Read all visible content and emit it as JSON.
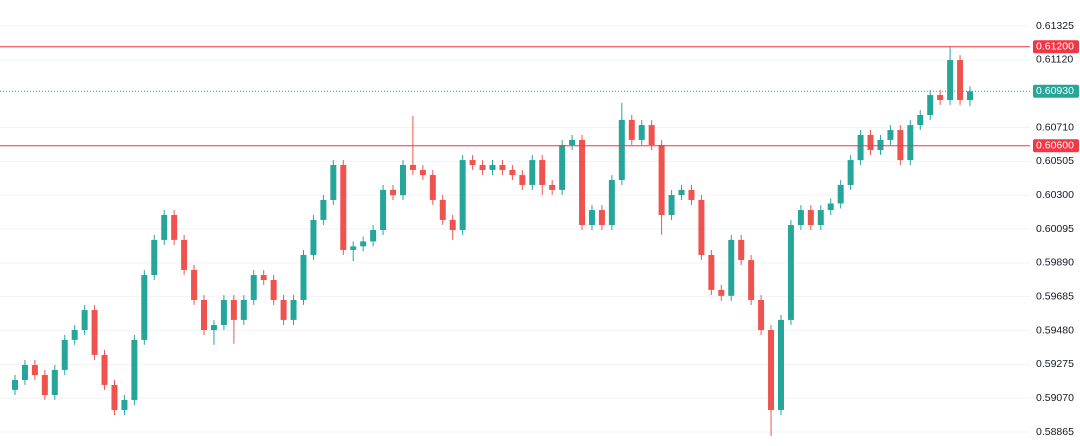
{
  "chart_data": {
    "type": "candlestick",
    "up_color": "#26a69a",
    "down_color": "#ef5350",
    "ylim": [
      0.5878,
      0.61483
    ],
    "yticks": [
      0.61325,
      {
        "value": 0.6112,
        "label": "0.61120"
      },
      {
        "value": 0.6071,
        "label": "0.60710"
      },
      0.60505,
      {
        "value": 0.603,
        "label": "0.60300"
      },
      0.60095,
      {
        "value": 0.5989,
        "label": "0.59890"
      },
      0.59685,
      {
        "value": 0.5948,
        "label": "0.59480"
      },
      0.59275,
      {
        "value": 0.5907,
        "label": "0.59070"
      },
      0.58865
    ],
    "grid": true,
    "hlines": [
      {
        "value": 0.612,
        "label": "0.61200",
        "color": "#f23645",
        "style": "solid"
      },
      {
        "value": 0.6093,
        "label": "0.60930",
        "color": "#26a69a",
        "style": "dotted"
      },
      {
        "value": 0.606,
        "label": "0.60600",
        "color": "#f23645",
        "style": "solid"
      }
    ],
    "open": [
      0.5912,
      0.5918,
      0.59271,
      0.5921,
      0.59089,
      0.59241,
      0.59423,
      0.59483,
      0.59604,
      0.59332,
      0.5915,
      0.58998,
      0.59059,
      0.59423,
      0.59816,
      0.60029,
      0.6018,
      0.60029,
      0.59847,
      0.59665,
      0.59483,
      0.59513,
      0.59665,
      0.59544,
      0.59665,
      0.59816,
      0.59786,
      0.59665,
      0.59544,
      0.59665,
      0.59938,
      0.6015,
      0.60271,
      0.60483,
      0.59968,
      0.5999,
      0.6002,
      0.60089,
      0.60332,
      0.603,
      0.60483,
      0.60453,
      0.60422,
      0.60271,
      0.6015,
      0.60089,
      0.60513,
      0.60483,
      0.60453,
      0.60483,
      0.60453,
      0.60422,
      0.60362,
      0.60513,
      0.60362,
      0.60332,
      0.60604,
      0.60635,
      0.60119,
      0.6021,
      0.60119,
      0.60392,
      0.60756,
      0.60635,
      0.60725,
      0.60604,
      0.6018,
      0.60301,
      0.60332,
      0.60271,
      0.59938,
      0.59726,
      0.5969,
      0.60029,
      0.59907,
      0.59665,
      0.59483,
      0.58998,
      0.59544,
      0.60119,
      0.6021,
      0.60119,
      0.6021,
      0.6025,
      0.60362,
      0.60513,
      0.60665,
      0.60574,
      0.60635,
      0.60695,
      0.60513,
      0.60725,
      0.60786,
      0.60907,
      0.60877,
      0.61119,
      0.60877
    ],
    "high": [
      0.5921,
      0.59301,
      0.59301,
      0.5924,
      0.59271,
      0.59453,
      0.59513,
      0.59634,
      0.59634,
      0.59362,
      0.5918,
      0.59089,
      0.59453,
      0.59846,
      0.60059,
      0.6021,
      0.6021,
      0.60059,
      0.59877,
      0.59695,
      0.59543,
      0.59695,
      0.59695,
      0.59695,
      0.59846,
      0.59846,
      0.59816,
      0.59695,
      0.59695,
      0.59968,
      0.6018,
      0.60301,
      0.60513,
      0.60513,
      0.6002,
      0.6005,
      0.60119,
      0.60362,
      0.60362,
      0.60513,
      0.6078,
      0.60483,
      0.60452,
      0.60301,
      0.6018,
      0.60543,
      0.60543,
      0.60513,
      0.60513,
      0.60513,
      0.60483,
      0.60452,
      0.60543,
      0.60543,
      0.60392,
      0.60634,
      0.60665,
      0.60665,
      0.6024,
      0.6024,
      0.60422,
      0.6086,
      0.60786,
      0.60755,
      0.60755,
      0.60634,
      0.60331,
      0.60362,
      0.60362,
      0.60301,
      0.59968,
      0.59756,
      0.60059,
      0.60059,
      0.59937,
      0.59695,
      0.59513,
      0.59574,
      0.60149,
      0.6024,
      0.6024,
      0.6024,
      0.6028,
      0.60392,
      0.60543,
      0.60695,
      0.60695,
      0.60665,
      0.60725,
      0.60725,
      0.60755,
      0.60816,
      0.60937,
      0.60937,
      0.612,
      0.61149,
      0.6096
    ],
    "low": [
      0.5909,
      0.5915,
      0.5918,
      0.59059,
      0.59059,
      0.59211,
      0.59393,
      0.59453,
      0.59302,
      0.5912,
      0.58968,
      0.58968,
      0.59029,
      0.59393,
      0.59786,
      0.59999,
      0.59999,
      0.59817,
      0.59635,
      0.59453,
      0.59393,
      0.59483,
      0.594,
      0.59514,
      0.59635,
      0.59756,
      0.59635,
      0.59514,
      0.59514,
      0.59635,
      0.59908,
      0.6012,
      0.60241,
      0.59938,
      0.599,
      0.5996,
      0.5999,
      0.60059,
      0.6027,
      0.6027,
      0.60423,
      0.60392,
      0.60241,
      0.6012,
      0.6003,
      0.60059,
      0.60453,
      0.60423,
      0.60423,
      0.60423,
      0.60392,
      0.60332,
      0.60332,
      0.603,
      0.60302,
      0.60302,
      0.60574,
      0.60089,
      0.60089,
      0.60089,
      0.60089,
      0.60362,
      0.60605,
      0.60605,
      0.60574,
      0.6006,
      0.6015,
      0.60271,
      0.60241,
      0.59908,
      0.59696,
      0.5966,
      0.5966,
      0.59877,
      0.59635,
      0.59453,
      0.5884,
      0.58968,
      0.59514,
      0.60089,
      0.60089,
      0.60089,
      0.6018,
      0.6022,
      0.60332,
      0.60483,
      0.60544,
      0.60544,
      0.60605,
      0.60483,
      0.60483,
      0.60695,
      0.60756,
      0.60847,
      0.60847,
      0.60847,
      0.6084
    ],
    "close": [
      0.5918,
      0.59271,
      0.5921,
      0.59089,
      0.59241,
      0.59423,
      0.59483,
      0.59604,
      0.59332,
      0.5915,
      0.58998,
      0.59059,
      0.59423,
      0.59816,
      0.60029,
      0.6018,
      0.60029,
      0.59847,
      0.59665,
      0.59483,
      0.59513,
      0.59665,
      0.59544,
      0.59665,
      0.59816,
      0.59786,
      0.59665,
      0.59544,
      0.59665,
      0.59938,
      0.6015,
      0.60271,
      0.60483,
      0.59968,
      0.5999,
      0.6002,
      0.60089,
      0.60332,
      0.603,
      0.60483,
      0.60453,
      0.60422,
      0.60271,
      0.6015,
      0.60089,
      0.60513,
      0.60483,
      0.60453,
      0.60483,
      0.60453,
      0.60422,
      0.60362,
      0.60513,
      0.60362,
      0.60332,
      0.60604,
      0.60635,
      0.60119,
      0.6021,
      0.60119,
      0.60392,
      0.60756,
      0.60635,
      0.60725,
      0.60604,
      0.6018,
      0.60301,
      0.60332,
      0.60271,
      0.59938,
      0.59726,
      0.5969,
      0.60029,
      0.59907,
      0.59665,
      0.59483,
      0.58998,
      0.59544,
      0.60119,
      0.6021,
      0.60119,
      0.6021,
      0.6025,
      0.60362,
      0.60513,
      0.60665,
      0.60574,
      0.60635,
      0.60695,
      0.60513,
      0.60725,
      0.60786,
      0.60907,
      0.60877,
      0.61119,
      0.60877,
      0.6093
    ]
  }
}
